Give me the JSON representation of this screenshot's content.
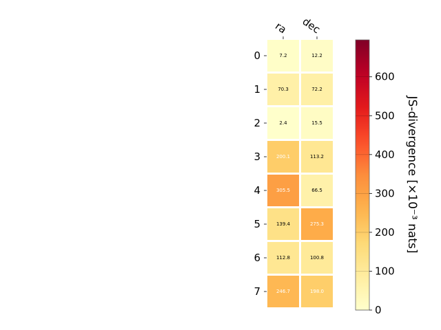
{
  "chart_data": {
    "type": "heatmap",
    "title": "",
    "columns": [
      "ra",
      "dec"
    ],
    "rows": [
      "0",
      "1",
      "2",
      "3",
      "4",
      "5",
      "6",
      "7"
    ],
    "values": [
      [
        7.2,
        12.2
      ],
      [
        70.3,
        72.2
      ],
      [
        2.4,
        15.5
      ],
      [
        200.1,
        113.2
      ],
      [
        305.5,
        66.5
      ],
      [
        139.4,
        275.3
      ],
      [
        112.8,
        100.8
      ],
      [
        246.7,
        198.0
      ]
    ],
    "value_labels": [
      [
        "7.2",
        "12.2"
      ],
      [
        "70.3",
        "72.2"
      ],
      [
        "2.4",
        "15.5"
      ],
      [
        "200.1",
        "113.2"
      ],
      [
        "305.5",
        "66.5"
      ],
      [
        "139.4",
        "275.3"
      ],
      [
        "112.8",
        "100.8"
      ],
      [
        "246.7",
        "198.0"
      ]
    ],
    "colormap": "YlOrRd",
    "colorbar": {
      "label": "JS-divergence [×10⁻³ nats]",
      "range": [
        0,
        695
      ],
      "ticks": [
        0,
        100,
        200,
        300,
        400,
        500,
        600
      ],
      "tick_labels": [
        "0",
        "100",
        "200",
        "300",
        "400",
        "500",
        "600"
      ],
      "placement": "right"
    },
    "label_color_threshold": 180,
    "label_colors": {
      "dark": "#000000",
      "light": "#ffffff"
    }
  }
}
